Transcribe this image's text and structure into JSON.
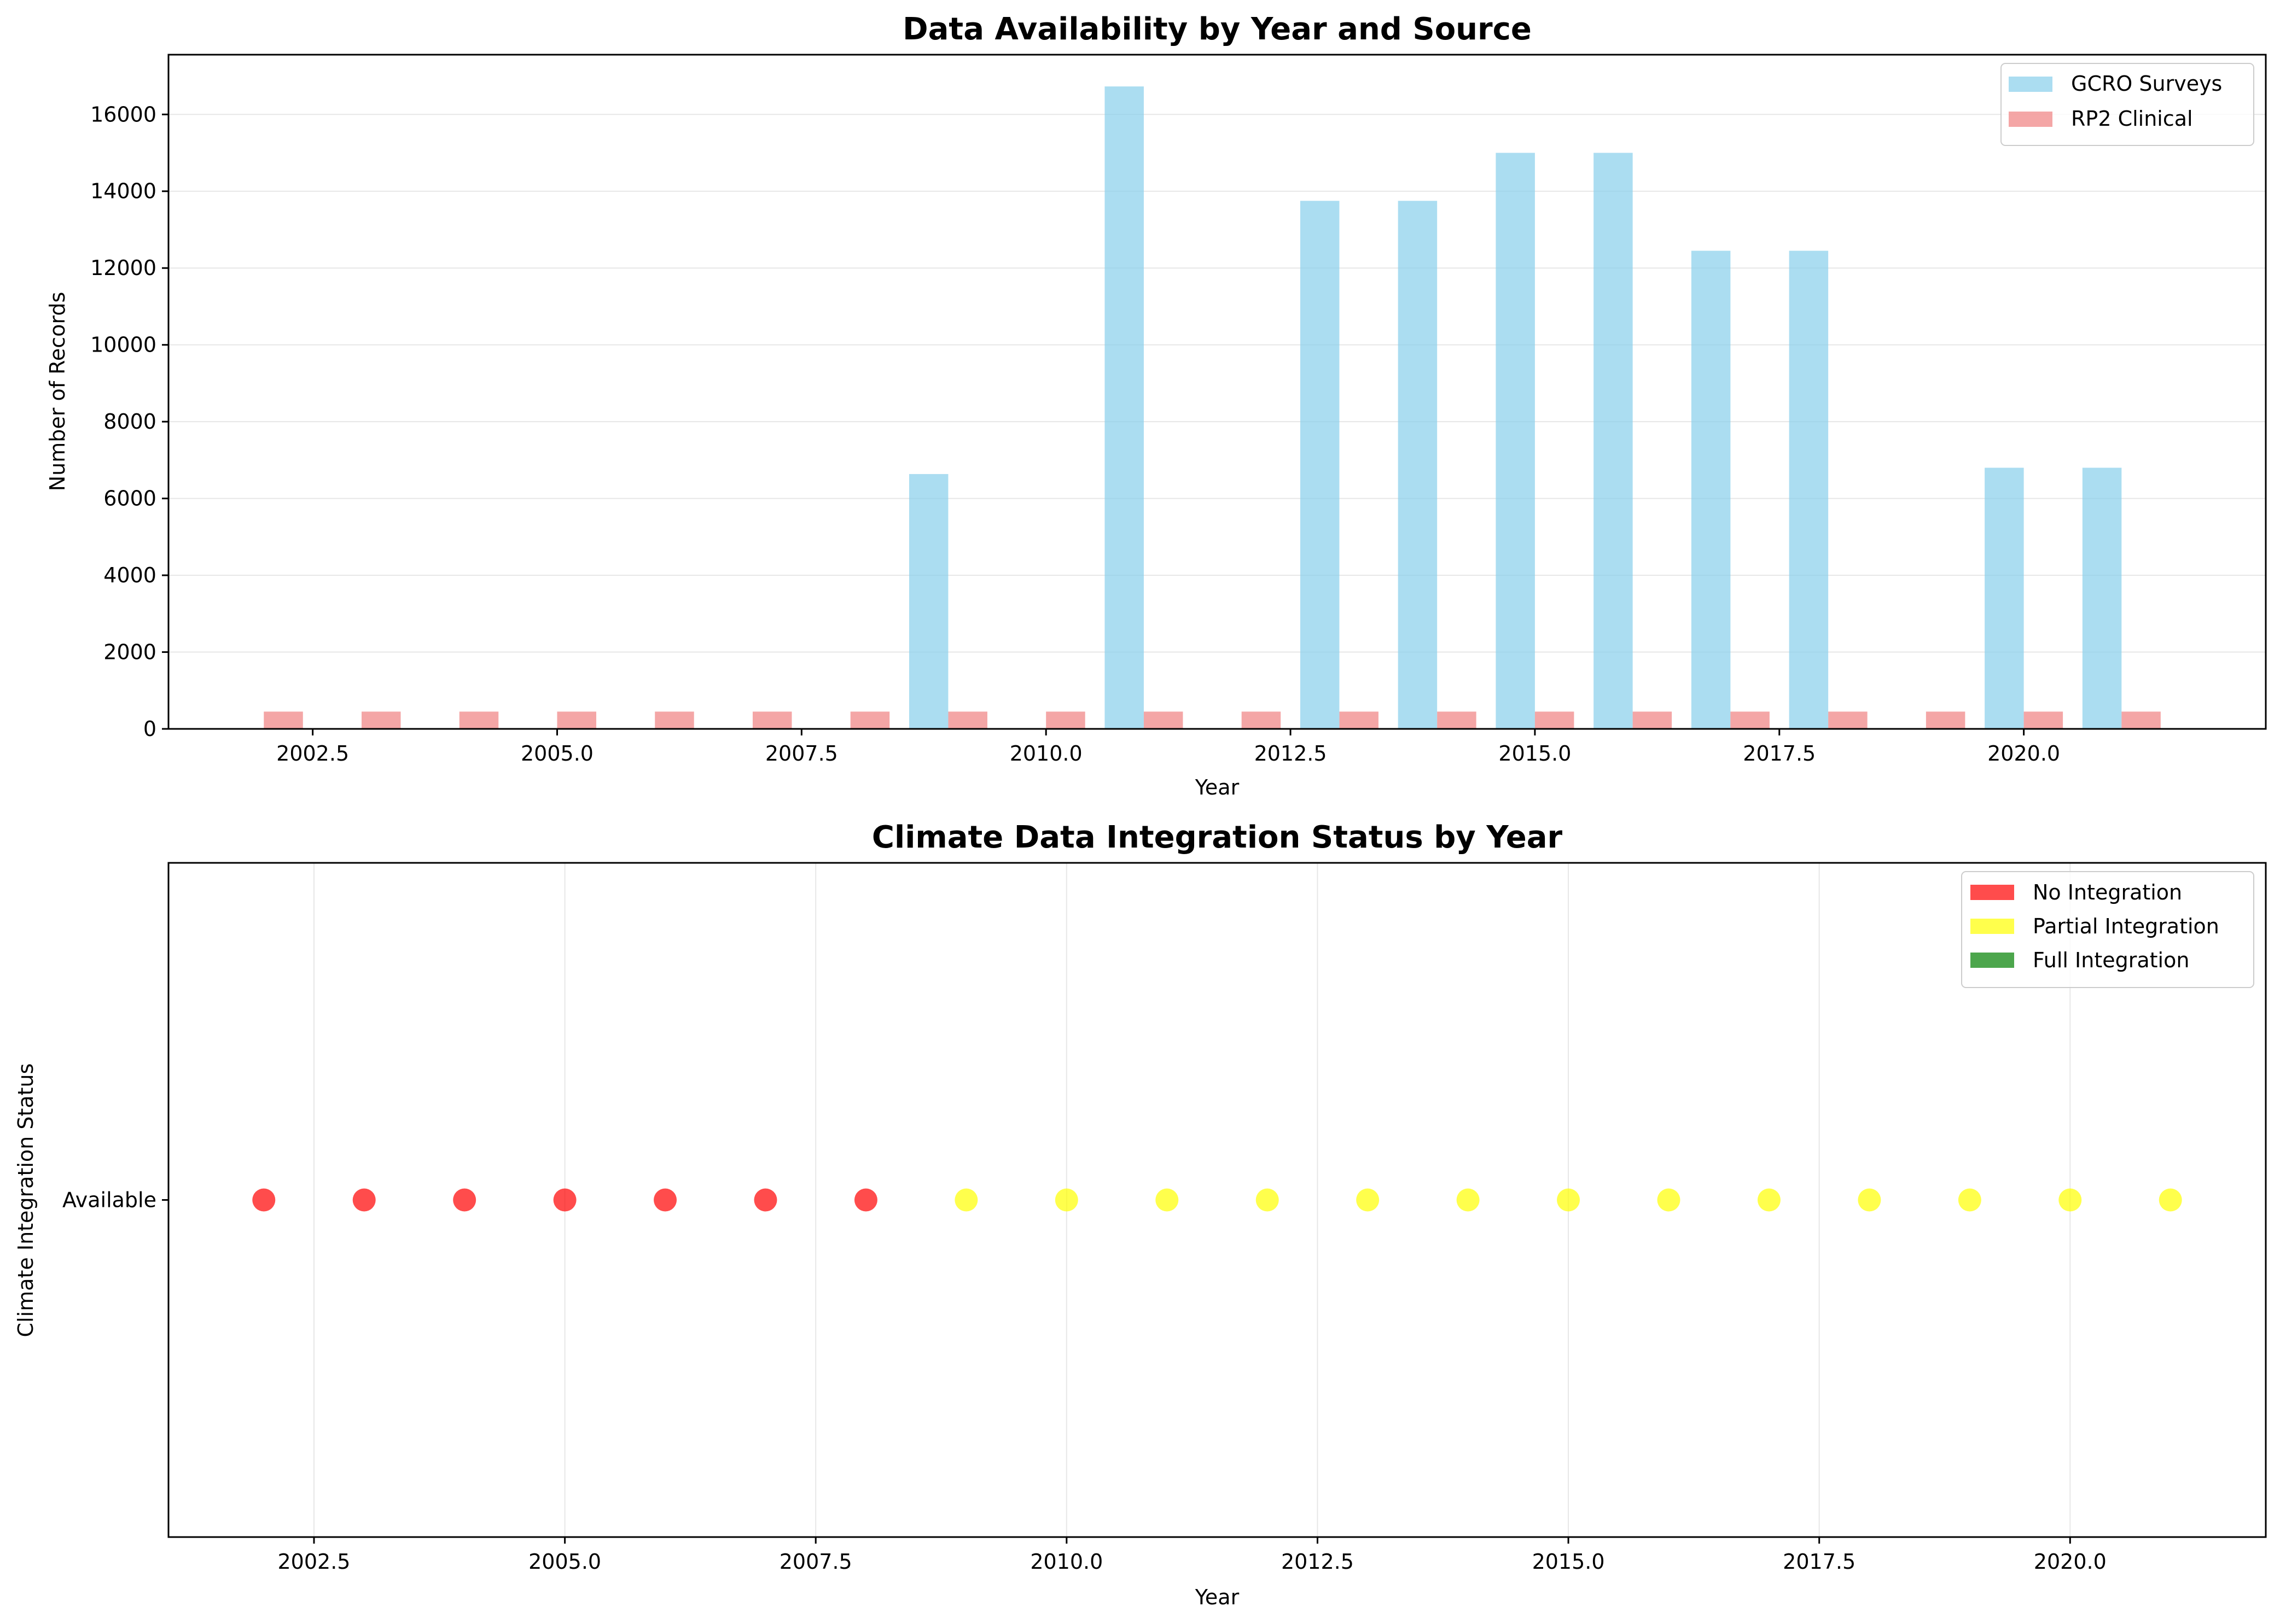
{
  "chart_data": [
    {
      "type": "bar",
      "title": "Data Availability by Year and Source",
      "xlabel": "Year",
      "ylabel": "Number of Records",
      "xlim": [
        2001.025,
        2022.475
      ],
      "ylim": [
        0,
        17556
      ],
      "xticks": [
        2002.5,
        2005.0,
        2007.5,
        2010.0,
        2012.5,
        2015.0,
        2017.5,
        2020.0
      ],
      "xtick_labels": [
        "2002.5",
        "2005.0",
        "2007.5",
        "2010.0",
        "2012.5",
        "2015.0",
        "2017.5",
        "2020.0"
      ],
      "yticks": [
        0,
        2000,
        4000,
        6000,
        8000,
        10000,
        12000,
        14000,
        16000
      ],
      "ytick_labels": [
        "0",
        "2000",
        "4000",
        "6000",
        "8000",
        "10000",
        "12000",
        "14000",
        "16000"
      ],
      "grid": "y",
      "legend_position": "top-right",
      "bar_width": 0.4,
      "series": [
        {
          "name": "GCRO Surveys",
          "color": "#87CEEB",
          "x": [
            2009,
            2011,
            2013,
            2014,
            2015,
            2016,
            2017,
            2018,
            2020,
            2021
          ],
          "values": [
            6636,
            16729,
            13750,
            13750,
            15000,
            15000,
            12450,
            12450,
            6800,
            6800
          ]
        },
        {
          "name": "RP2 Clinical",
          "color": "#F08080",
          "x": [
            2002,
            2003,
            2004,
            2005,
            2006,
            2007,
            2008,
            2009,
            2010,
            2011,
            2012,
            2013,
            2014,
            2015,
            2016,
            2017,
            2018,
            2019,
            2020,
            2021
          ],
          "values": [
            450,
            450,
            450,
            450,
            450,
            450,
            450,
            450,
            450,
            450,
            450,
            450,
            450,
            450,
            450,
            450,
            450,
            450,
            450,
            450
          ]
        }
      ]
    },
    {
      "type": "scatter",
      "title": "Climate Data Integration Status by Year",
      "xlabel": "Year",
      "ylabel": "Climate Integration Status",
      "xlim": [
        2001.05,
        2021.95
      ],
      "ylim": [
        -0.5,
        0.5
      ],
      "xticks": [
        2002.5,
        2005.0,
        2007.5,
        2010.0,
        2012.5,
        2015.0,
        2017.5,
        2020.0
      ],
      "xtick_labels": [
        "2002.5",
        "2005.0",
        "2007.5",
        "2010.0",
        "2012.5",
        "2015.0",
        "2017.5",
        "2020.0"
      ],
      "ytick_labels": [
        "Available"
      ],
      "grid": "x",
      "legend_position": "top-right",
      "categories": [
        {
          "name": "No Integration",
          "color": "#FF0000"
        },
        {
          "name": "Partial Integration",
          "color": "#FFFF00"
        },
        {
          "name": "Full Integration",
          "color": "#008000"
        }
      ],
      "points": [
        {
          "x": 2002,
          "status": "No Integration"
        },
        {
          "x": 2003,
          "status": "No Integration"
        },
        {
          "x": 2004,
          "status": "No Integration"
        },
        {
          "x": 2005,
          "status": "No Integration"
        },
        {
          "x": 2006,
          "status": "No Integration"
        },
        {
          "x": 2007,
          "status": "No Integration"
        },
        {
          "x": 2008,
          "status": "No Integration"
        },
        {
          "x": 2009,
          "status": "Partial Integration"
        },
        {
          "x": 2010,
          "status": "Partial Integration"
        },
        {
          "x": 2011,
          "status": "Partial Integration"
        },
        {
          "x": 2012,
          "status": "Partial Integration"
        },
        {
          "x": 2013,
          "status": "Partial Integration"
        },
        {
          "x": 2014,
          "status": "Partial Integration"
        },
        {
          "x": 2015,
          "status": "Partial Integration"
        },
        {
          "x": 2016,
          "status": "Partial Integration"
        },
        {
          "x": 2017,
          "status": "Partial Integration"
        },
        {
          "x": 2018,
          "status": "Partial Integration"
        },
        {
          "x": 2019,
          "status": "Partial Integration"
        },
        {
          "x": 2020,
          "status": "Partial Integration"
        },
        {
          "x": 2021,
          "status": "Partial Integration"
        }
      ]
    }
  ]
}
